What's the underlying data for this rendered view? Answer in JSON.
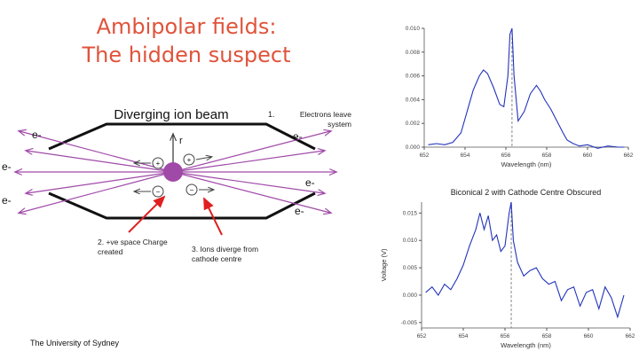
{
  "slide": {
    "title_line1": "Ambipolar fields:",
    "title_line2": "The hidden suspect",
    "footer": "The University of Sydney",
    "accent_color": "#e0533b"
  },
  "diagram": {
    "heading": "Diverging ion beam",
    "axis_label": "r",
    "electron_label": "e-",
    "plus_sign": "+",
    "minus_sign": "−",
    "annotation_1_number": "1.",
    "annotation_1_text": "Electrons leave system",
    "annotation_2": "2. +ve space Charge created",
    "annotation_3": "3. Ions diverge from cathode centre",
    "beam_color": "#a04aa8",
    "arrow_color": "#e02020"
  },
  "chart_data": [
    {
      "type": "line",
      "title": "",
      "xlabel": "Wavelength (nm)",
      "ylabel": "",
      "xlim": [
        652,
        662
      ],
      "ylim": [
        0,
        0.01
      ],
      "x_ticks": [
        652,
        654,
        656,
        658,
        660,
        662
      ],
      "y_ticks": [
        0.0,
        0.002,
        0.004,
        0.006,
        0.008,
        0.01
      ],
      "x_tick_labels": [
        "652",
        "654",
        "656",
        "658",
        "660",
        "662"
      ],
      "y_tick_labels": [
        "0.000",
        "0.002",
        "0.004",
        "0.006",
        "0.008",
        "0.010"
      ],
      "marker_line_x": 656.3,
      "line_color": "#2233bb",
      "series": [
        {
          "x": [
            652.2,
            652.6,
            653.0,
            653.4,
            653.8,
            654.1,
            654.4,
            654.7,
            654.9,
            655.1,
            655.4,
            655.7,
            655.9,
            656.1,
            656.2,
            656.3,
            656.4,
            656.6,
            656.9,
            657.2,
            657.5,
            657.7,
            657.9,
            658.2,
            658.5,
            658.8,
            659.0,
            659.3,
            659.6,
            660.0,
            660.5,
            661.0,
            661.5,
            661.8
          ],
          "y": [
            0.0002,
            0.0003,
            0.0002,
            0.0004,
            0.0012,
            0.003,
            0.0048,
            0.006,
            0.0065,
            0.0062,
            0.005,
            0.0036,
            0.0034,
            0.006,
            0.0095,
            0.01,
            0.006,
            0.0022,
            0.003,
            0.0045,
            0.0052,
            0.0047,
            0.004,
            0.0032,
            0.0022,
            0.0012,
            0.0006,
            0.0003,
            0.0001,
            0.0002,
            -0.0001,
            0.0001,
            0.0,
            0.0
          ]
        }
      ]
    },
    {
      "type": "line",
      "title": "Biconical 2 with Cathode Centre Obscured",
      "xlabel": "Wavelength (nm)",
      "ylabel": "Voltage (V)",
      "xlim": [
        652,
        662
      ],
      "ylim": [
        -0.006,
        0.017
      ],
      "x_ticks": [
        652,
        654,
        656,
        658,
        660,
        662
      ],
      "y_ticks": [
        -0.005,
        0.0,
        0.005,
        0.01,
        0.015
      ],
      "x_tick_labels": [
        "652",
        "654",
        "656",
        "658",
        "660",
        "662"
      ],
      "y_tick_labels": [
        "-0.005",
        "0.000",
        "0.005",
        "0.010",
        "0.015"
      ],
      "marker_line_x": 656.3,
      "line_color": "#2233bb",
      "series": [
        {
          "x": [
            652.2,
            652.5,
            652.8,
            653.1,
            653.4,
            653.7,
            654.0,
            654.3,
            654.6,
            654.8,
            655.0,
            655.2,
            655.4,
            655.6,
            655.8,
            656.0,
            656.2,
            656.3,
            656.4,
            656.6,
            656.9,
            657.2,
            657.5,
            657.8,
            658.1,
            658.4,
            658.7,
            659.0,
            659.3,
            659.6,
            659.9,
            660.2,
            660.5,
            660.8,
            661.1,
            661.4,
            661.7
          ],
          "y": [
            0.0005,
            0.0015,
            0.0,
            0.002,
            0.001,
            0.003,
            0.0055,
            0.009,
            0.012,
            0.015,
            0.012,
            0.0145,
            0.01,
            0.011,
            0.008,
            0.009,
            0.015,
            0.017,
            0.01,
            0.006,
            0.0035,
            0.0045,
            0.005,
            0.003,
            0.002,
            0.0025,
            -0.001,
            0.001,
            0.0015,
            -0.002,
            0.0005,
            0.001,
            -0.0025,
            0.0015,
            -0.0005,
            -0.004,
            0.0
          ]
        }
      ]
    }
  ]
}
